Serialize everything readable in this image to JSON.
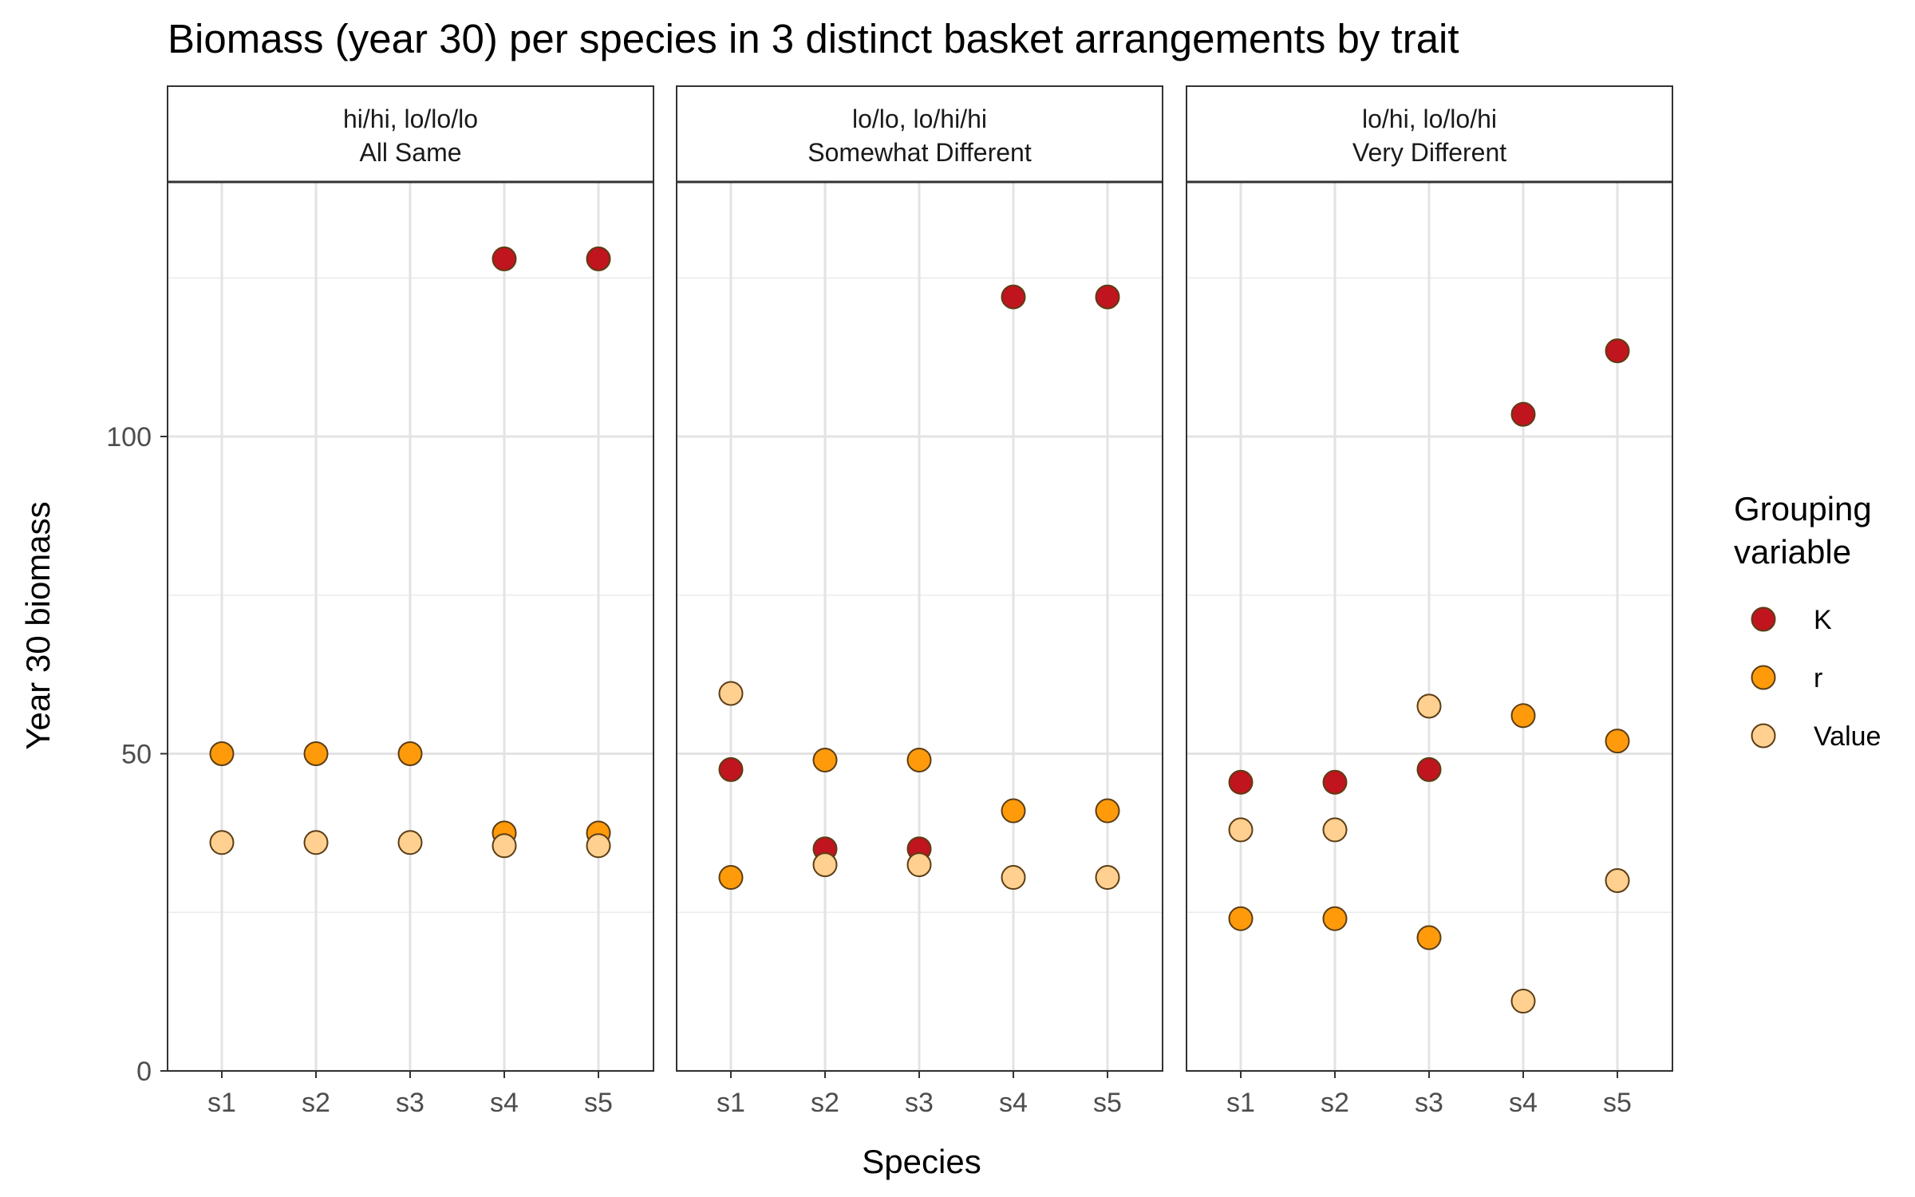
{
  "chart_data": {
    "type": "scatter",
    "title": "Biomass (year 30) per species in 3 distinct basket arrangements by trait",
    "xlabel": "Species",
    "ylabel": "Year 30 biomass",
    "categories": [
      "s1",
      "s2",
      "s3",
      "s4",
      "s5"
    ],
    "ylim": [
      0,
      140
    ],
    "y_ticks": [
      0,
      50,
      100
    ],
    "grid": true,
    "legend": {
      "title_lines": [
        "Grouping",
        "variable"
      ],
      "placement": "right"
    },
    "colors": {
      "K": "#c0141f",
      "r": "#ff9b0a",
      "Value": "#ffd08f"
    },
    "series_names": [
      "K",
      "r",
      "Value"
    ],
    "panels": [
      {
        "strip_line1": "hi/hi, lo/lo/lo",
        "strip_line2": "All Same",
        "series": [
          {
            "name": "K",
            "values": [
              null,
              null,
              null,
              128,
              128
            ]
          },
          {
            "name": "r",
            "values": [
              50,
              50,
              50,
              37.5,
              37.5
            ]
          },
          {
            "name": "Value",
            "values": [
              36,
              36,
              36,
              35.5,
              35.5
            ]
          }
        ]
      },
      {
        "strip_line1": "lo/lo, lo/hi/hi",
        "strip_line2": "Somewhat Different",
        "series": [
          {
            "name": "K",
            "values": [
              47.5,
              35,
              35,
              122,
              122
            ]
          },
          {
            "name": "r",
            "values": [
              30.5,
              49,
              49,
              41,
              41
            ]
          },
          {
            "name": "Value",
            "values": [
              59.5,
              32.5,
              32.5,
              30.5,
              30.5
            ]
          }
        ]
      },
      {
        "strip_line1": "lo/hi, lo/lo/hi",
        "strip_line2": "Very Different",
        "series": [
          {
            "name": "K",
            "values": [
              45.5,
              45.5,
              47.5,
              103.5,
              113.5
            ]
          },
          {
            "name": "r",
            "values": [
              24,
              24,
              21,
              56,
              52
            ]
          },
          {
            "name": "Value",
            "values": [
              38,
              38,
              57.5,
              11,
              30
            ]
          }
        ]
      }
    ]
  }
}
